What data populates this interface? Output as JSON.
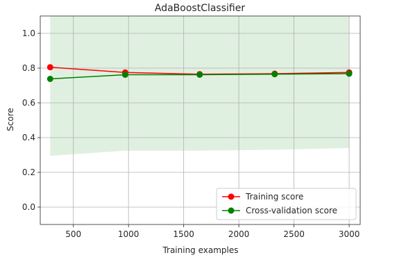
{
  "chart_data": {
    "type": "line",
    "title": "AdaBoostClassifier",
    "xlabel": "Training examples",
    "ylabel": "Score",
    "xlim": [
      200,
      3100
    ],
    "ylim": [
      -0.1,
      1.1
    ],
    "xticks": [
      500,
      1000,
      1500,
      2000,
      2500,
      3000
    ],
    "yticks": [
      0.0,
      0.2,
      0.4,
      0.6,
      0.8,
      1.0
    ],
    "grid": true,
    "legend_position": "lower-right",
    "x": [
      290,
      970,
      1645,
      2325,
      3000
    ],
    "series": [
      {
        "name": "Training score",
        "color": "#ff0000",
        "values": [
          0.805,
          0.775,
          0.765,
          0.768,
          0.775
        ],
        "band_lower": [
          0.805,
          0.775,
          0.765,
          0.768,
          0.775
        ],
        "band_upper": [
          0.805,
          0.775,
          0.765,
          0.768,
          0.775
        ]
      },
      {
        "name": "Cross-validation score",
        "color": "#008000",
        "values": [
          0.738,
          0.762,
          0.762,
          0.765,
          0.768
        ],
        "band_lower": [
          0.295,
          0.325,
          0.325,
          0.33,
          0.34
        ],
        "band_upper": [
          1.12,
          1.12,
          1.12,
          1.12,
          1.12
        ]
      }
    ]
  }
}
